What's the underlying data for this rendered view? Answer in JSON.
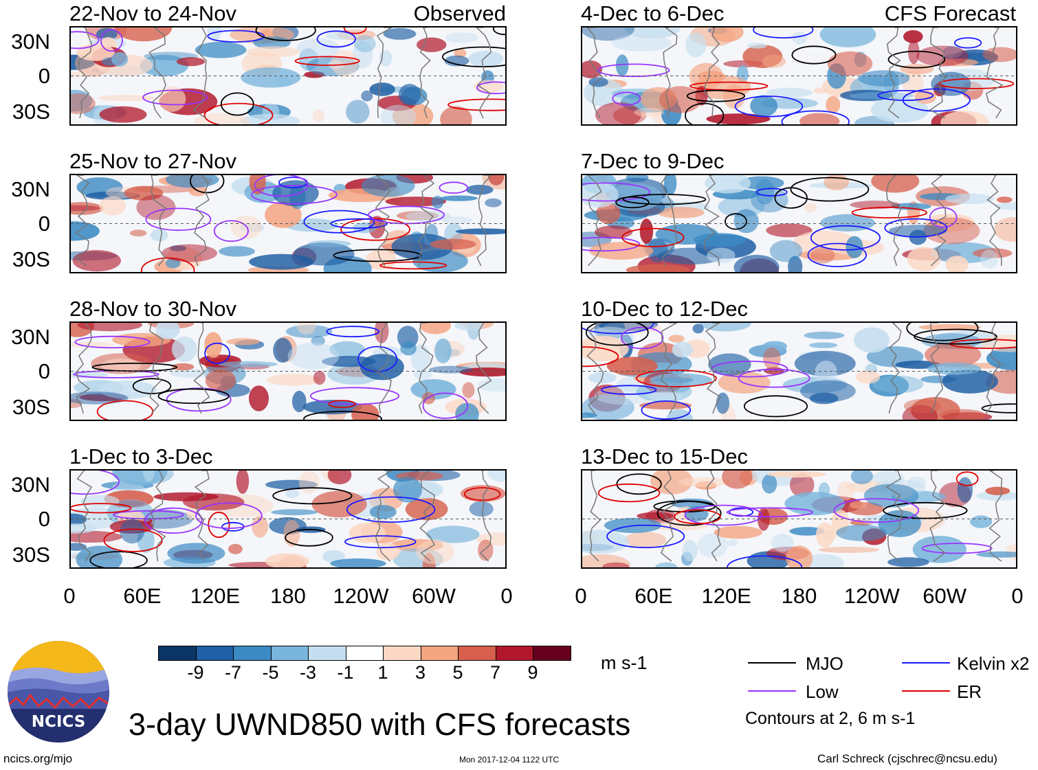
{
  "panels": [
    {
      "title": "22-Nov to 24-Nov",
      "label": "Observed"
    },
    {
      "title": "25-Nov to 27-Nov",
      "label": ""
    },
    {
      "title": "28-Nov to 30-Nov",
      "label": ""
    },
    {
      "title": "1-Dec to 3-Dec",
      "label": ""
    },
    {
      "title": "4-Dec to 6-Dec",
      "label": "CFS Forecast"
    },
    {
      "title": "7-Dec to 9-Dec",
      "label": ""
    },
    {
      "title": "10-Dec to 12-Dec",
      "label": ""
    },
    {
      "title": "13-Dec to 15-Dec",
      "label": ""
    }
  ],
  "y_axis_labels": [
    "30N",
    "0",
    "30S"
  ],
  "x_axis_labels": [
    "0",
    "60E",
    "120E",
    "180",
    "120W",
    "60W",
    "0"
  ],
  "colorbar": {
    "unit": "m s-1",
    "labels": [
      "-9",
      "-7",
      "-5",
      "-3",
      "-1",
      "1",
      "3",
      "5",
      "7",
      "9"
    ],
    "colors": [
      "#0b3566",
      "#1f5fa4",
      "#3b8ac3",
      "#7ab5dc",
      "#c6dff0",
      "#ffffff",
      "#fcd8c4",
      "#f4a582",
      "#d6604d",
      "#b2182b",
      "#67001f"
    ]
  },
  "legend": {
    "items": [
      {
        "name": "MJO",
        "color": "#000000"
      },
      {
        "name": "Kelvin x2",
        "color": "#1a1aff"
      },
      {
        "name": "Low",
        "color": "#9933ff"
      },
      {
        "name": "ER",
        "color": "#e00000"
      }
    ],
    "note": "Contours at 2, 6 m s-1"
  },
  "logo": {
    "text": "NCICS"
  },
  "main_title": "3-day UWND850 with CFS forecasts",
  "footer": {
    "left": "ncics.org/mjo",
    "center": "Mon 2017-12-04 1122 UTC",
    "right": "Carl Schreck (cjschrec@ncsu.edu)"
  }
}
